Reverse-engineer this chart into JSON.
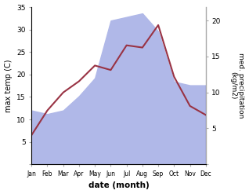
{
  "months": [
    "Jan",
    "Feb",
    "Mar",
    "Apr",
    "May",
    "Jun",
    "Jul",
    "Aug",
    "Sep",
    "Oct",
    "Nov",
    "Dec"
  ],
  "month_positions": [
    0,
    1,
    2,
    3,
    4,
    5,
    6,
    7,
    8,
    9,
    10,
    11
  ],
  "temperature": [
    6.5,
    12.0,
    16.0,
    18.5,
    22.0,
    21.0,
    26.5,
    26.0,
    31.0,
    19.5,
    13.0,
    11.0
  ],
  "precipitation": [
    7.5,
    7.0,
    7.5,
    9.5,
    12.0,
    20.0,
    20.5,
    21.0,
    18.5,
    11.5,
    11.0,
    11.0
  ],
  "temp_color": "#993344",
  "precip_color": "#b0b8e8",
  "temp_ylim": [
    0,
    35
  ],
  "precip_ylim": [
    0,
    21.875
  ],
  "temp_yticks": [
    0,
    5,
    10,
    15,
    20,
    25,
    30,
    35
  ],
  "precip_yticks": [
    0,
    5,
    10,
    15,
    20
  ],
  "xlabel": "date (month)",
  "ylabel_left": "max temp (C)",
  "ylabel_right": "med. precipitation\n(kg/m2)",
  "background_color": "#ffffff",
  "figsize": [
    3.18,
    2.47
  ],
  "dpi": 100
}
